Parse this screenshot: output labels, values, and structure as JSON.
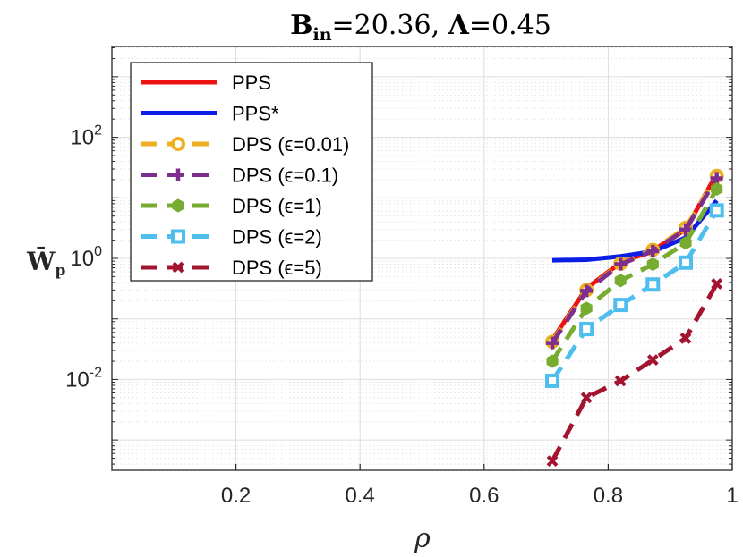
{
  "chart_data": {
    "type": "line",
    "title": {
      "bold_b": "B",
      "sub_in": "in",
      "eq1": "=20.36, ",
      "bold_lambda": "Λ",
      "eq2": "=0.45"
    },
    "xlabel": "ρ",
    "ylabel": {
      "main": "W̄",
      "sub": "p"
    },
    "xlim": [
      0,
      1
    ],
    "ylim_log10": [
      -3.5,
      3.5
    ],
    "y_scale": "log",
    "x_ticks": [
      {
        "v": 0.2,
        "label": "0.2"
      },
      {
        "v": 0.4,
        "label": "0.4"
      },
      {
        "v": 0.6,
        "label": "0.6"
      },
      {
        "v": 0.8,
        "label": "0.8"
      },
      {
        "v": 1.0,
        "label": "1"
      }
    ],
    "y_ticks": [
      {
        "exp": 2,
        "base": "10",
        "sup": "2"
      },
      {
        "exp": 0,
        "base": "10",
        "sup": "0"
      },
      {
        "exp": -2,
        "base": "10",
        "sup": "-2"
      }
    ],
    "grid": true,
    "legend_position": "top-left",
    "series": [
      {
        "name": "PPS",
        "color": "#ee1111",
        "dash": "solid",
        "marker": "none",
        "x": [
          0.71,
          0.765,
          0.82,
          0.872,
          0.925,
          0.975
        ],
        "y": [
          0.045,
          0.32,
          0.85,
          1.35,
          3.0,
          25
        ]
      },
      {
        "name": "PPS*",
        "color": "#0a1ee6",
        "dash": "solid",
        "marker": "none",
        "x": [
          0.71,
          0.765,
          0.82,
          0.872,
          0.925,
          0.975
        ],
        "y": [
          0.93,
          0.95,
          1.08,
          1.3,
          2.2,
          9.0
        ]
      },
      {
        "name": "DPS (ϵ=0.01)",
        "color": "#edb120",
        "dash": "dashed",
        "marker": "circle",
        "x": [
          0.71,
          0.765,
          0.82,
          0.872,
          0.925,
          0.975
        ],
        "y": [
          0.042,
          0.3,
          0.82,
          1.38,
          3.2,
          23
        ]
      },
      {
        "name": "DPS (ϵ=0.1)",
        "color": "#7e2f8e",
        "dash": "dashed",
        "marker": "plus",
        "x": [
          0.71,
          0.765,
          0.82,
          0.872,
          0.925,
          0.975
        ],
        "y": [
          0.04,
          0.29,
          0.8,
          1.32,
          3.0,
          21
        ]
      },
      {
        "name": "DPS (ϵ=1)",
        "color": "#77ac30",
        "dash": "dashed",
        "marker": "hexagon",
        "x": [
          0.71,
          0.765,
          0.82,
          0.872,
          0.925,
          0.975
        ],
        "y": [
          0.02,
          0.15,
          0.43,
          0.8,
          1.8,
          14
        ]
      },
      {
        "name": "DPS (ϵ=2)",
        "color": "#4dbeee",
        "dash": "dashed",
        "marker": "square",
        "x": [
          0.71,
          0.765,
          0.82,
          0.872,
          0.925,
          0.975
        ],
        "y": [
          0.0095,
          0.068,
          0.17,
          0.37,
          0.85,
          6.2
        ]
      },
      {
        "name": "DPS (ϵ=5)",
        "color": "#a2142f",
        "dash": "dashed",
        "marker": "x",
        "x": [
          0.71,
          0.765,
          0.82,
          0.872,
          0.925,
          0.975
        ],
        "y": [
          0.00045,
          0.005,
          0.0095,
          0.021,
          0.048,
          0.38
        ]
      }
    ]
  }
}
